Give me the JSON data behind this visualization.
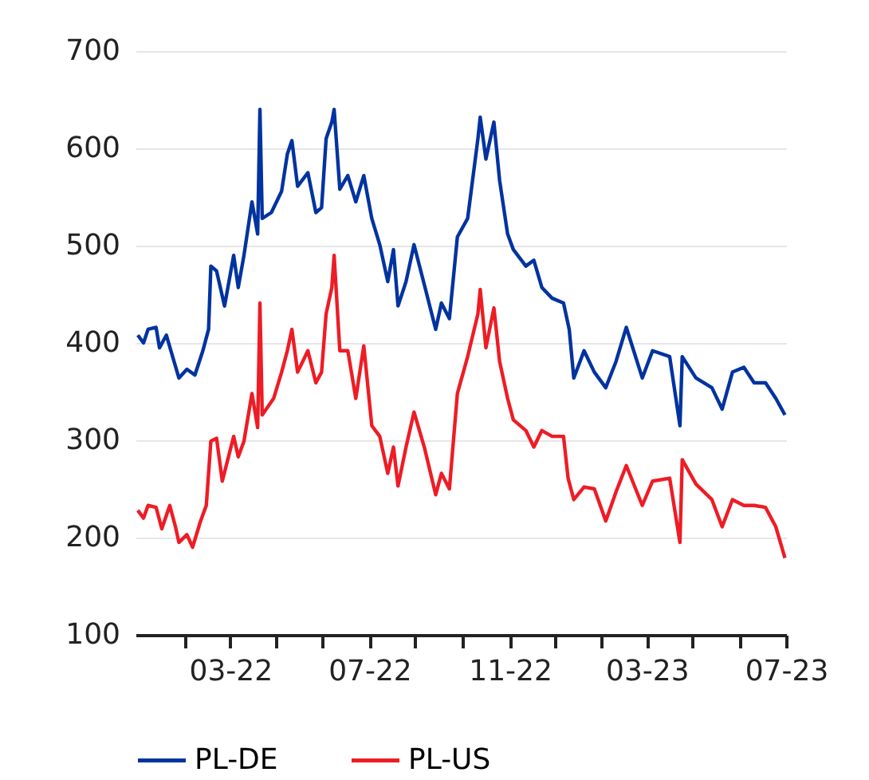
{
  "chart_data": {
    "type": "line",
    "legend": "bottom",
    "grid": "y",
    "line_style": "solid",
    "marker": "none",
    "xlim": [
      "2021-12-08",
      "2023-07-01"
    ],
    "xticks": [
      {
        "value": "2022-01-20",
        "label": null
      },
      {
        "value": "2022-03-01",
        "label": "03-22"
      },
      {
        "value": "2022-04-10",
        "label": null
      },
      {
        "value": "2022-05-21",
        "label": null
      },
      {
        "value": "2022-07-01",
        "label": "07-22"
      },
      {
        "value": "2022-08-10",
        "label": null
      },
      {
        "value": "2022-09-20",
        "label": null
      },
      {
        "value": "2022-11-01",
        "label": "11-22"
      },
      {
        "value": "2022-12-11",
        "label": null
      },
      {
        "value": "2023-01-20",
        "label": null
      },
      {
        "value": "2023-03-01",
        "label": "03-23"
      },
      {
        "value": "2023-04-10",
        "label": null
      },
      {
        "value": "2023-05-21",
        "label": null
      },
      {
        "value": "2023-07-01",
        "label": "07-23"
      }
    ],
    "ylim": [
      100,
      700
    ],
    "yticks": [
      100,
      200,
      300,
      400,
      500,
      600,
      700
    ],
    "series": [
      {
        "name": "PL-DE",
        "color": "#0033a0",
        "x": [
          "2021-12-10",
          "2021-12-15",
          "2021-12-19",
          "2021-12-26",
          "2021-12-29",
          "2022-01-04",
          "2022-01-08",
          "2022-01-15",
          "2022-01-22",
          "2022-01-29",
          "2022-02-05",
          "2022-02-10",
          "2022-02-12",
          "2022-02-17",
          "2022-02-24",
          "2022-03-04",
          "2022-03-08",
          "2022-03-13",
          "2022-03-20",
          "2022-03-25",
          "2022-03-27",
          "2022-03-29",
          "2022-04-06",
          "2022-04-15",
          "2022-04-20",
          "2022-04-24",
          "2022-04-29",
          "2022-05-08",
          "2022-05-15",
          "2022-05-20",
          "2022-05-24",
          "2022-05-29",
          "2022-05-31",
          "2022-06-05",
          "2022-06-12",
          "2022-06-19",
          "2022-06-26",
          "2022-07-03",
          "2022-07-10",
          "2022-07-17",
          "2022-07-22",
          "2022-07-26",
          "2022-08-02",
          "2022-08-09",
          "2022-08-18",
          "2022-08-28",
          "2022-09-02",
          "2022-09-09",
          "2022-09-16",
          "2022-09-25",
          "2022-10-04",
          "2022-10-06",
          "2022-10-11",
          "2022-10-18",
          "2022-10-23",
          "2022-10-30",
          "2022-11-04",
          "2022-11-15",
          "2022-11-22",
          "2022-11-29",
          "2022-12-08",
          "2022-12-18",
          "2022-12-23",
          "2022-12-27",
          "2023-01-05",
          "2023-01-14",
          "2023-01-24",
          "2023-02-02",
          "2023-02-11",
          "2023-02-25",
          "2023-03-06",
          "2023-03-21",
          "2023-03-30",
          "2023-04-01",
          "2023-04-13",
          "2023-04-27",
          "2023-05-06",
          "2023-05-15",
          "2023-05-25",
          "2023-06-03",
          "2023-06-13",
          "2023-06-22",
          "2023-06-30"
        ],
        "values": [
          408,
          400,
          414,
          416,
          395,
          408,
          392,
          364,
          373,
          367,
          392,
          414,
          479,
          474,
          438,
          490,
          457,
          490,
          545,
          512,
          640,
          528,
          534,
          556,
          594,
          608,
          561,
          575,
          534,
          539,
          610,
          627,
          640,
          558,
          572,
          545,
          572,
          528,
          501,
          463,
          496,
          438,
          463,
          501,
          460,
          414,
          441,
          425,
          509,
          528,
          610,
          632,
          589,
          627,
          567,
          512,
          496,
          479,
          485,
          457,
          446,
          441,
          414,
          364,
          392,
          370,
          354,
          381,
          416,
          364,
          392,
          386,
          315,
          386,
          364,
          354,
          332,
          370,
          375,
          359,
          359,
          343,
          326
        ]
      },
      {
        "name": "PL-US",
        "color": "#ee1c25",
        "x": [
          "2021-12-10",
          "2021-12-15",
          "2021-12-19",
          "2021-12-26",
          "2021-12-31",
          "2022-01-07",
          "2022-01-12",
          "2022-01-15",
          "2022-01-22",
          "2022-01-27",
          "2022-02-03",
          "2022-02-08",
          "2022-02-12",
          "2022-02-17",
          "2022-02-22",
          "2022-03-04",
          "2022-03-08",
          "2022-03-13",
          "2022-03-20",
          "2022-03-25",
          "2022-03-27",
          "2022-03-29",
          "2022-04-08",
          "2022-04-15",
          "2022-04-20",
          "2022-04-24",
          "2022-04-29",
          "2022-05-08",
          "2022-05-15",
          "2022-05-20",
          "2022-05-24",
          "2022-05-29",
          "2022-05-31",
          "2022-06-05",
          "2022-06-12",
          "2022-06-19",
          "2022-06-26",
          "2022-07-03",
          "2022-07-10",
          "2022-07-17",
          "2022-07-22",
          "2022-07-26",
          "2022-08-02",
          "2022-08-09",
          "2022-08-18",
          "2022-08-28",
          "2022-09-02",
          "2022-09-09",
          "2022-09-16",
          "2022-09-25",
          "2022-10-04",
          "2022-10-06",
          "2022-10-11",
          "2022-10-18",
          "2022-10-23",
          "2022-10-30",
          "2022-11-04",
          "2022-11-15",
          "2022-11-22",
          "2022-11-29",
          "2022-12-08",
          "2022-12-18",
          "2022-12-22",
          "2022-12-27",
          "2023-01-05",
          "2023-01-14",
          "2023-01-24",
          "2023-02-02",
          "2023-02-11",
          "2023-02-25",
          "2023-03-06",
          "2023-03-21",
          "2023-03-30",
          "2023-04-01",
          "2023-04-13",
          "2023-04-27",
          "2023-05-06",
          "2023-05-15",
          "2023-05-25",
          "2023-06-03",
          "2023-06-13",
          "2023-06-22",
          "2023-06-30"
        ],
        "values": [
          228,
          220,
          233,
          231,
          209,
          233,
          211,
          195,
          203,
          190,
          217,
          233,
          299,
          302,
          258,
          304,
          283,
          299,
          348,
          313,
          441,
          326,
          343,
          370,
          392,
          414,
          370,
          392,
          359,
          370,
          430,
          457,
          490,
          392,
          392,
          343,
          397,
          315,
          304,
          266,
          293,
          253,
          293,
          329,
          293,
          244,
          266,
          250,
          348,
          386,
          430,
          455,
          395,
          436,
          381,
          343,
          321,
          310,
          293,
          310,
          304,
          304,
          261,
          239,
          252,
          250,
          217,
          247,
          274,
          233,
          258,
          261,
          195,
          280,
          255,
          239,
          211,
          239,
          233,
          233,
          231,
          211,
          179
        ]
      }
    ]
  }
}
